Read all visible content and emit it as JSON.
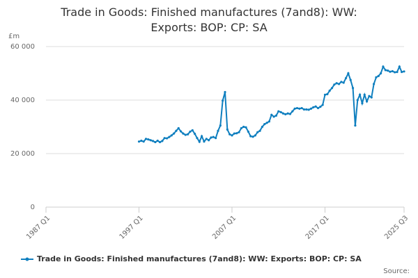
{
  "chart_data": {
    "type": "line",
    "title": "Trade in Goods: Finished manufactures (7and8): WW: Exports: BOP: CP: SA",
    "y_label": "£m",
    "source": "Source:",
    "categories": [
      "1987 Q1",
      null,
      null,
      null,
      null,
      null,
      null,
      null,
      null,
      null,
      null,
      null,
      null,
      null,
      null,
      null,
      null,
      null,
      null,
      null,
      null,
      null,
      null,
      null,
      null,
      null,
      null,
      null,
      null,
      null,
      null,
      null,
      null,
      null,
      null,
      null,
      null,
      null,
      null,
      null,
      "1997 Q1",
      null,
      null,
      null,
      null,
      null,
      null,
      null,
      null,
      null,
      null,
      null,
      null,
      null,
      null,
      null,
      null,
      null,
      null,
      null,
      null,
      null,
      null,
      null,
      null,
      null,
      null,
      null,
      null,
      null,
      null,
      null,
      null,
      null,
      null,
      null,
      null,
      null,
      null,
      null,
      "2007 Q1",
      null,
      null,
      null,
      null,
      null,
      null,
      null,
      null,
      null,
      null,
      null,
      null,
      null,
      null,
      null,
      null,
      null,
      null,
      null,
      null,
      null,
      null,
      null,
      null,
      null,
      null,
      null,
      null,
      null,
      null,
      null,
      null,
      null,
      null,
      null,
      null,
      null,
      null,
      null,
      "2017 Q1",
      null,
      null,
      null,
      null,
      null,
      null,
      null,
      null,
      null,
      null,
      null,
      null,
      null,
      null,
      null,
      null,
      null,
      null,
      null,
      null,
      null,
      null,
      null,
      null,
      null,
      null,
      null,
      null,
      null,
      null,
      null,
      null,
      null,
      "2025 Q3"
    ],
    "series": [
      {
        "name": "Trade in Goods: Finished manufactures (7and8): WW: Exports: BOP: CP: SA",
        "color": "#0f7fbf",
        "values": [
          null,
          null,
          null,
          null,
          null,
          null,
          null,
          null,
          null,
          null,
          null,
          null,
          null,
          null,
          null,
          null,
          null,
          null,
          null,
          null,
          null,
          null,
          null,
          null,
          null,
          null,
          null,
          null,
          null,
          null,
          null,
          null,
          null,
          null,
          null,
          null,
          null,
          null,
          null,
          null,
          24500,
          24800,
          24500,
          25500,
          25300,
          25000,
          24700,
          24300,
          24800,
          24300,
          24700,
          25800,
          25700,
          26200,
          26800,
          27500,
          28500,
          29500,
          28300,
          27500,
          27000,
          27200,
          28200,
          28700,
          27400,
          25800,
          24400,
          26500,
          24500,
          25500,
          25000,
          26000,
          26200,
          25800,
          28500,
          30500,
          39800,
          43000,
          29000,
          27200,
          26800,
          27500,
          27600,
          28000,
          29500,
          30000,
          29800,
          28200,
          26500,
          26300,
          26800,
          28000,
          28500,
          30000,
          31000,
          31500,
          32000,
          34500,
          33800,
          34200,
          35800,
          35500,
          35000,
          34700,
          35000,
          34800,
          35800,
          36800,
          37000,
          36800,
          37000,
          36500,
          36500,
          36400,
          36800,
          37300,
          37600,
          37000,
          37500,
          38200,
          42000,
          42200,
          43500,
          44500,
          45800,
          46300,
          46000,
          46800,
          46500,
          48200,
          50000,
          47500,
          44500,
          30500,
          40000,
          42000,
          38800,
          42000,
          39500,
          41500,
          41000,
          46000,
          48500,
          49000,
          50000,
          52500,
          51200,
          51000,
          50600,
          50800,
          50400,
          50500,
          52500,
          50500,
          50700
        ]
      }
    ],
    "ylim": [
      0,
      60000
    ],
    "yticks": [
      0,
      {
        "value": 20000,
        "label": "20 000"
      },
      {
        "value": 40000,
        "label": "40 000"
      },
      {
        "value": 60000,
        "label": "60 000"
      }
    ],
    "grid": true
  }
}
